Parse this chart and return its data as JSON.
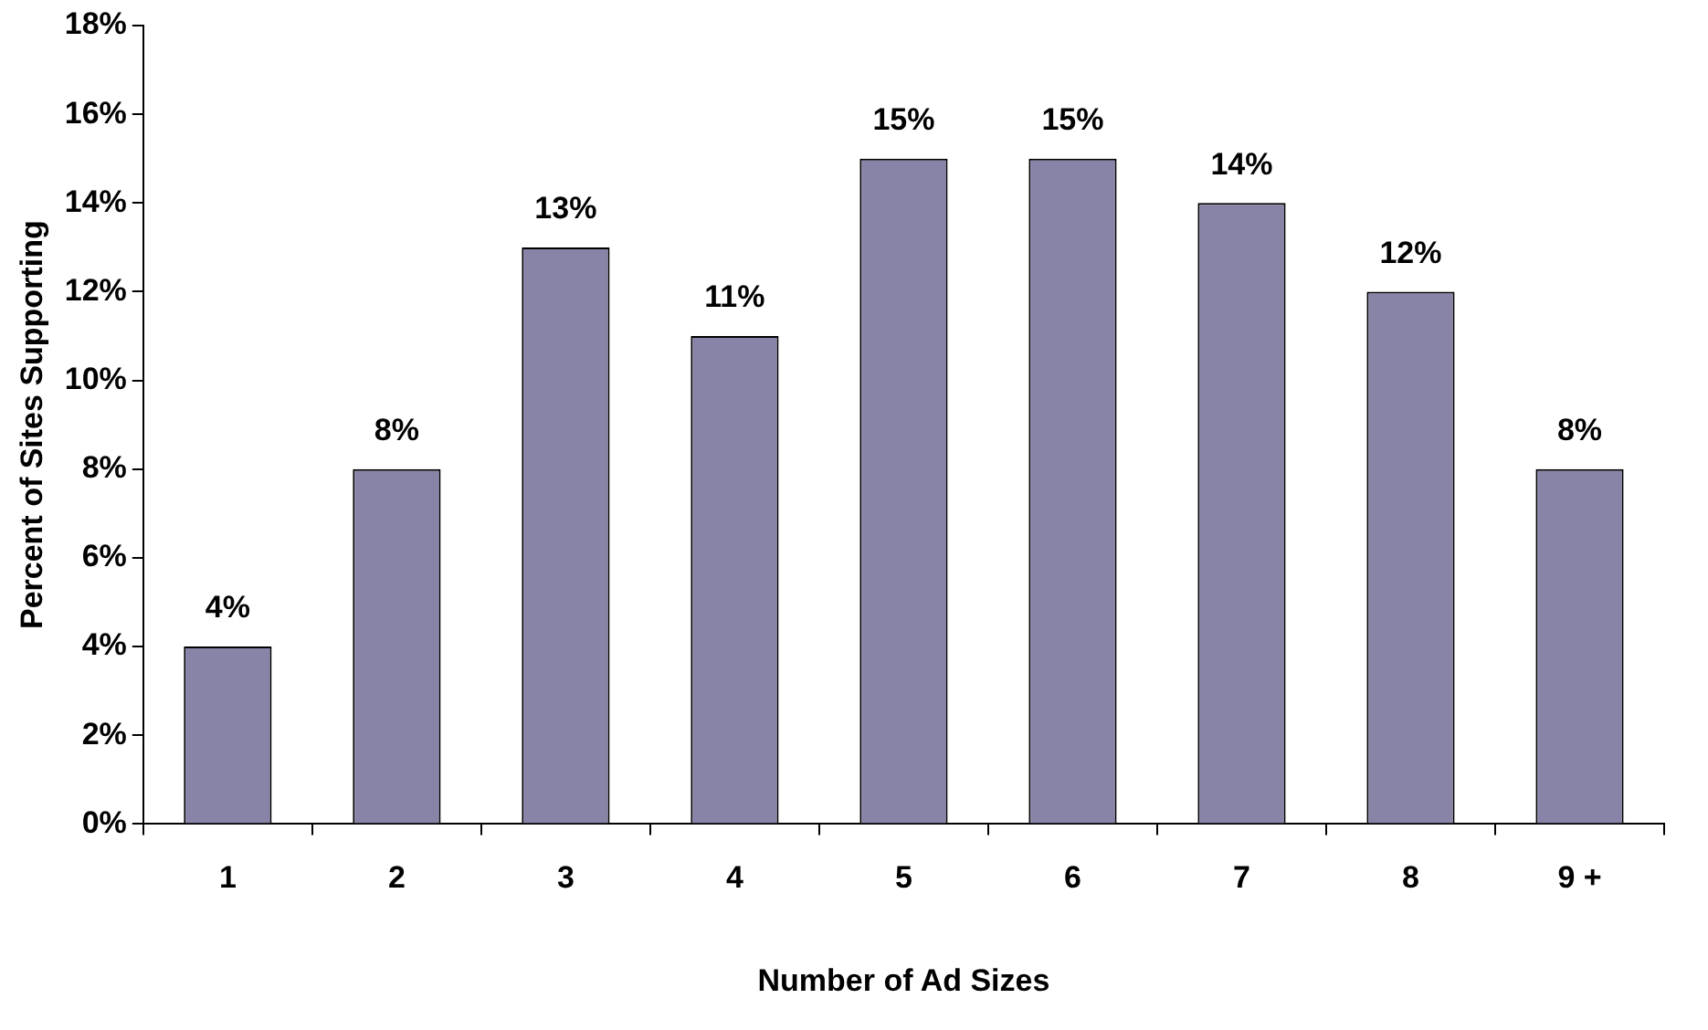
{
  "chart_data": {
    "type": "bar",
    "xlabel": "Number of Ad Sizes",
    "ylabel": "Percent of Sites Supporting",
    "categories": [
      "1",
      "2",
      "3",
      "4",
      "5",
      "6",
      "7",
      "8",
      "9 +"
    ],
    "values": [
      4,
      8,
      13,
      11,
      15,
      15,
      14,
      12,
      8
    ],
    "value_labels": [
      "4%",
      "8%",
      "13%",
      "11%",
      "15%",
      "15%",
      "14%",
      "12%",
      "8%"
    ],
    "color": "#8884a8",
    "ylim": [
      0,
      18
    ],
    "yticks": [
      {
        "value": 0,
        "label": "0%"
      },
      {
        "value": 2,
        "label": "2%"
      },
      {
        "value": 4,
        "label": "4%"
      },
      {
        "value": 6,
        "label": "6%"
      },
      {
        "value": 8,
        "label": "8%"
      },
      {
        "value": 10,
        "label": "10%"
      },
      {
        "value": 12,
        "label": "12%"
      },
      {
        "value": 14,
        "label": "14%"
      },
      {
        "value": 16,
        "label": "16%"
      },
      {
        "value": 18,
        "label": "18%"
      }
    ],
    "grid": false,
    "legend": false
  }
}
